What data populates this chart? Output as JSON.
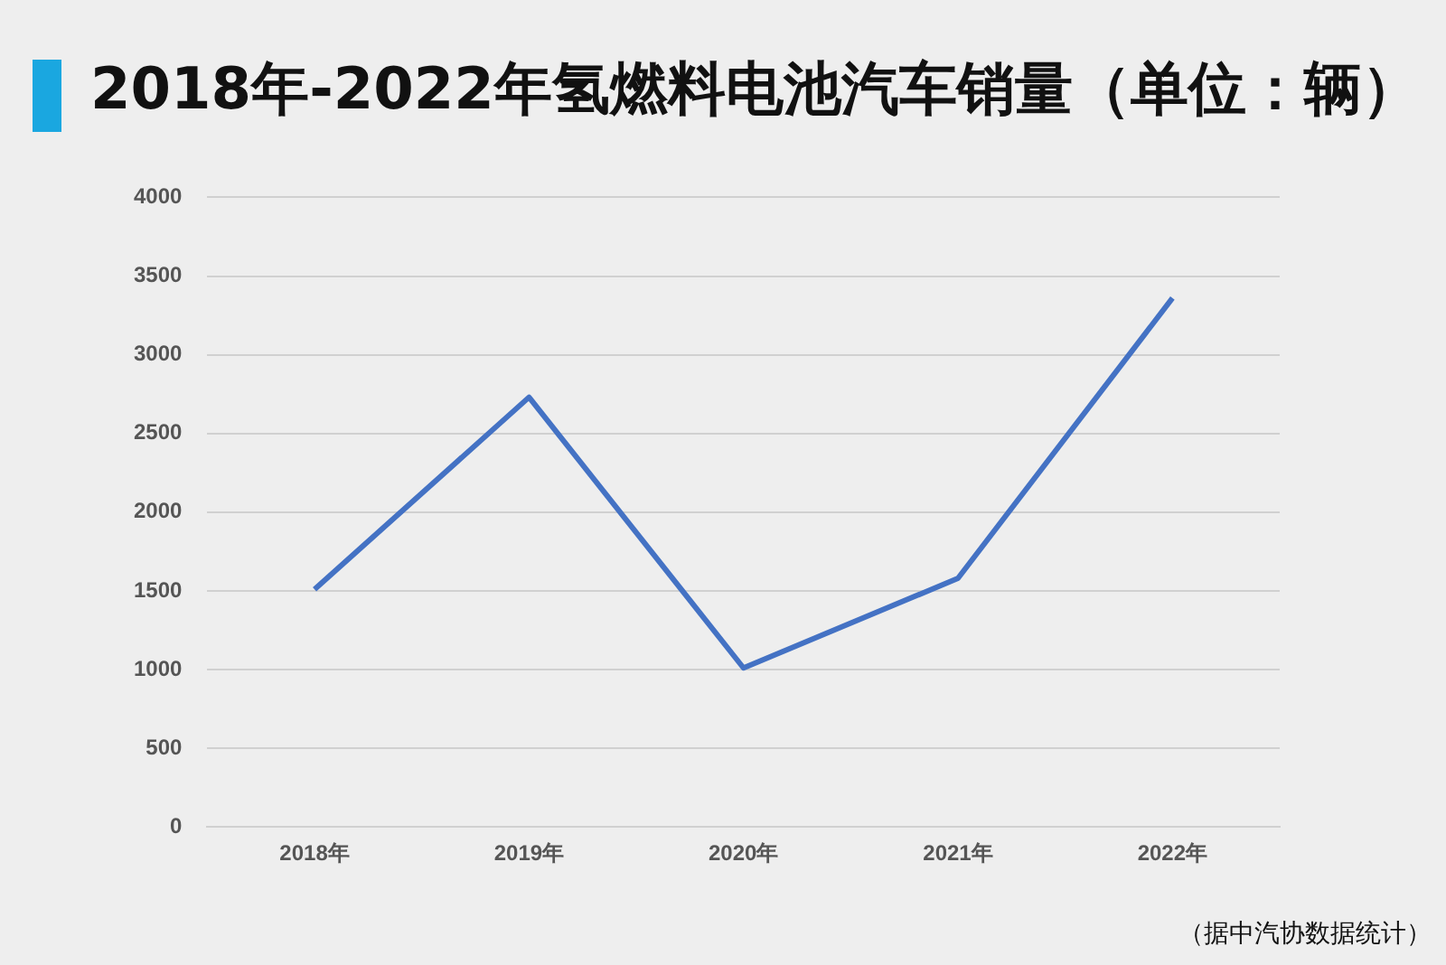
{
  "chart_data": {
    "type": "line",
    "title": "2018年-2022年氢燃料电池汽车销量（单位：辆）",
    "categories": [
      "2018年",
      "2019年",
      "2020年",
      "2021年",
      "2022年"
    ],
    "series": [
      {
        "color": "#4472c4",
        "values": [
          1510,
          2730,
          1010,
          1580,
          3360
        ]
      }
    ],
    "ylim": [
      0,
      4000
    ],
    "yticks": [
      0,
      500,
      1000,
      1500,
      2000,
      2500,
      3000,
      3500,
      4000
    ],
    "grid": "y",
    "legend": false,
    "marker": "none",
    "line_style": "solid",
    "annotations": [
      "（据中汽协数据统计）"
    ]
  }
}
